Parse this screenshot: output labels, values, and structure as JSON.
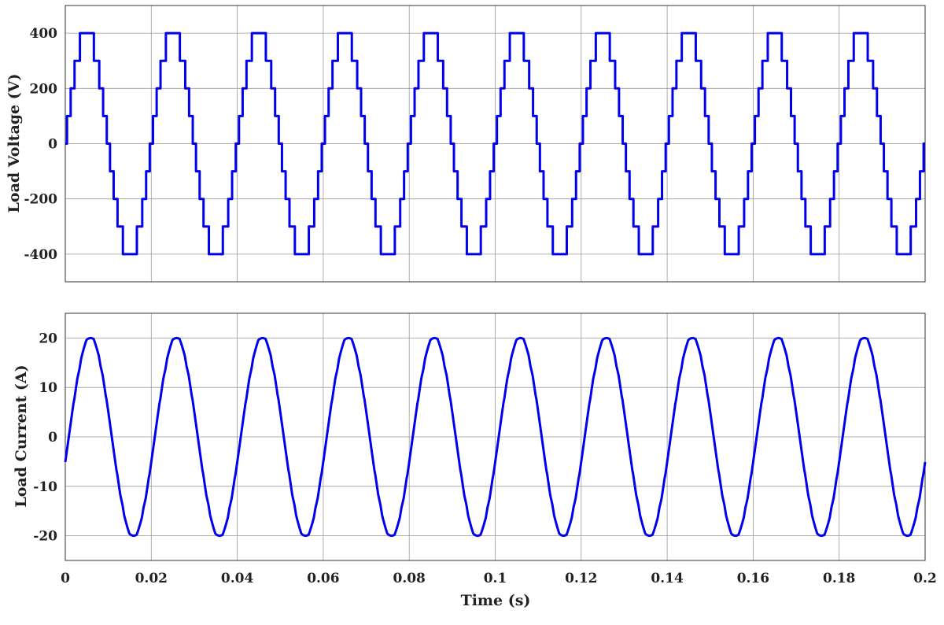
{
  "chart_data": [
    {
      "type": "line",
      "title": "",
      "ylabel": "Load Voltage (V)",
      "xlabel": "",
      "xlim": [
        0,
        0.2
      ],
      "ylim": [
        -500,
        500
      ],
      "yticks": [
        -400,
        -200,
        0,
        200,
        400
      ],
      "ytick_labels": [
        "-400",
        "-200",
        "0",
        "200",
        "400"
      ],
      "xticks": [
        0,
        0.02,
        0.04,
        0.06,
        0.08,
        0.1,
        0.12,
        0.14,
        0.16,
        0.18,
        0.2
      ],
      "xtick_labels": [],
      "grid": true,
      "color": "#0000ee",
      "series": [
        {
          "waveform": "staircase",
          "frequency_hz": 50,
          "level_step": 100,
          "max_level": 400,
          "duration_s": 0.2
        }
      ]
    },
    {
      "type": "line",
      "title": "",
      "ylabel": "Load Current (A)",
      "xlabel": "Time (s)",
      "xlim": [
        0,
        0.2
      ],
      "ylim": [
        -25,
        25
      ],
      "yticks": [
        -20,
        -10,
        0,
        10,
        20
      ],
      "ytick_labels": [
        "-20",
        "-10",
        "0",
        "10",
        "20"
      ],
      "xticks": [
        0,
        0.02,
        0.04,
        0.06,
        0.08,
        0.1,
        0.12,
        0.14,
        0.16,
        0.18,
        0.2
      ],
      "xtick_labels": [
        "0",
        "0.02",
        "0.04",
        "0.06",
        "0.08",
        "0.1",
        "0.12",
        "0.14",
        "0.16",
        "0.18",
        "0.2"
      ],
      "grid": true,
      "color": "#0000ee",
      "series": [
        {
          "waveform": "smoothed-staircase",
          "frequency_hz": 50,
          "peak": 20,
          "duration_s": 0.2
        }
      ]
    }
  ]
}
